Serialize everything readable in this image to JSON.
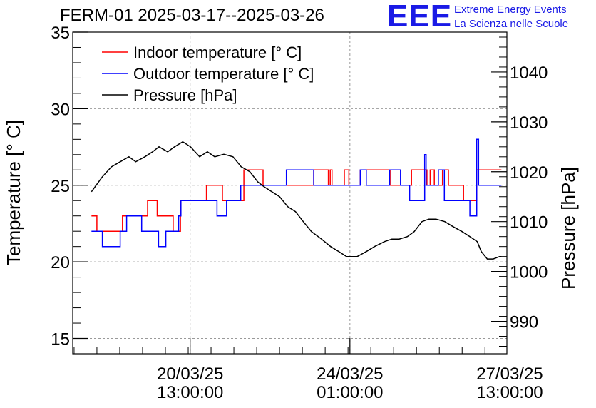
{
  "header": {
    "title": "FERM-01 2025-03-17--2025-03-26",
    "logo_mark": "EEE",
    "logo_line1": "Extreme Energy Events",
    "logo_line2": "La Scienza nelle Scuole"
  },
  "colors": {
    "indoor": "#ff0000",
    "outdoor": "#0000ff",
    "pressure": "#000000",
    "logo": "#1a1ae6"
  },
  "chart_data": {
    "type": "line",
    "title": "FERM-01 2025-03-17--2025-03-26",
    "xlabel": "",
    "ylabel": "Temperature [° C]",
    "y2label": "Pressure [hPa]",
    "ylim": [
      14,
      35
    ],
    "y2lim": [
      983.5,
      1048
    ],
    "yticks": [
      15,
      20,
      25,
      30,
      35
    ],
    "y2ticks": [
      990,
      1000,
      1010,
      1020,
      1030,
      1040
    ],
    "x_unit": "days since 2025-03-17 00:00",
    "xlim": [
      0.97,
      10.48
    ],
    "xticks": [
      {
        "x": 3.5417,
        "label_date": "20/03/25",
        "label_time": "13:00:00"
      },
      {
        "x": 7.0417,
        "label_date": "24/03/25",
        "label_time": "01:00:00"
      },
      {
        "x": 10.5417,
        "label_date": "27/03/25",
        "label_time": "13:00:00"
      }
    ],
    "grid": true,
    "legend_position": "top-left",
    "series": [
      {
        "name": "Indoor temperature [° C]",
        "axis": "left",
        "step": true,
        "points": [
          [
            1.38,
            23
          ],
          [
            1.5,
            22
          ],
          [
            2.06,
            23
          ],
          [
            2.61,
            24
          ],
          [
            2.82,
            23
          ],
          [
            3.17,
            22
          ],
          [
            3.33,
            24
          ],
          [
            3.9,
            25
          ],
          [
            4.25,
            24
          ],
          [
            4.72,
            26
          ],
          [
            5.14,
            25
          ],
          [
            6.25,
            26
          ],
          [
            6.57,
            25
          ],
          [
            6.61,
            26
          ],
          [
            6.65,
            25
          ],
          [
            6.92,
            26
          ],
          [
            7.02,
            25
          ],
          [
            7.27,
            26
          ],
          [
            7.92,
            25
          ],
          [
            8.39,
            26
          ],
          [
            8.73,
            25
          ],
          [
            8.8,
            26
          ],
          [
            8.89,
            25
          ],
          [
            9.07,
            26
          ],
          [
            9.2,
            25
          ],
          [
            9.53,
            24
          ],
          [
            9.82,
            26
          ],
          [
            10.36,
            26
          ]
        ]
      },
      {
        "name": "Outdoor temperature [° C]",
        "axis": "left",
        "step": true,
        "points": [
          [
            1.38,
            22
          ],
          [
            1.62,
            21
          ],
          [
            2.01,
            22
          ],
          [
            2.15,
            23
          ],
          [
            2.48,
            22
          ],
          [
            2.85,
            21
          ],
          [
            3.01,
            22
          ],
          [
            3.29,
            23
          ],
          [
            3.34,
            24
          ],
          [
            4.13,
            23
          ],
          [
            4.34,
            24
          ],
          [
            4.65,
            25
          ],
          [
            5.65,
            26
          ],
          [
            6.25,
            25
          ],
          [
            7.27,
            26
          ],
          [
            7.4,
            25
          ],
          [
            7.91,
            26
          ],
          [
            8.15,
            25
          ],
          [
            8.35,
            24
          ],
          [
            8.68,
            27
          ],
          [
            8.71,
            25
          ],
          [
            8.98,
            26
          ],
          [
            9.11,
            24
          ],
          [
            9.67,
            23
          ],
          [
            9.82,
            28
          ],
          [
            9.86,
            25
          ],
          [
            10.36,
            25
          ]
        ]
      },
      {
        "name": "Pressure [hPa]",
        "axis": "right",
        "step": false,
        "points": [
          [
            1.38,
            1016.0
          ],
          [
            1.62,
            1019.0
          ],
          [
            1.82,
            1021.0
          ],
          [
            2.01,
            1022.0
          ],
          [
            2.2,
            1023.0
          ],
          [
            2.35,
            1022.0
          ],
          [
            2.55,
            1023.0
          ],
          [
            2.72,
            1024.0
          ],
          [
            2.86,
            1025.0
          ],
          [
            3.05,
            1024.0
          ],
          [
            3.2,
            1025.0
          ],
          [
            3.38,
            1026.0
          ],
          [
            3.55,
            1025.0
          ],
          [
            3.75,
            1023.0
          ],
          [
            3.92,
            1024.0
          ],
          [
            4.08,
            1023.0
          ],
          [
            4.28,
            1023.5
          ],
          [
            4.48,
            1023.0
          ],
          [
            4.66,
            1021.0
          ],
          [
            4.85,
            1020.0
          ],
          [
            5.02,
            1018.0
          ],
          [
            5.16,
            1017.0
          ],
          [
            5.33,
            1016.0
          ],
          [
            5.5,
            1015.0
          ],
          [
            5.68,
            1013.0
          ],
          [
            5.85,
            1012.0
          ],
          [
            6.02,
            1010.0
          ],
          [
            6.2,
            1008.0
          ],
          [
            6.42,
            1006.5
          ],
          [
            6.62,
            1005.0
          ],
          [
            6.8,
            1004.0
          ],
          [
            6.97,
            1003.0
          ],
          [
            7.2,
            1003.0
          ],
          [
            7.4,
            1004.0
          ],
          [
            7.58,
            1005.0
          ],
          [
            7.8,
            1006.0
          ],
          [
            7.96,
            1006.5
          ],
          [
            8.12,
            1006.5
          ],
          [
            8.3,
            1007.0
          ],
          [
            8.45,
            1008.0
          ],
          [
            8.62,
            1010.0
          ],
          [
            8.77,
            1010.5
          ],
          [
            8.93,
            1010.5
          ],
          [
            9.12,
            1010.0
          ],
          [
            9.3,
            1009.0
          ],
          [
            9.5,
            1008.0
          ],
          [
            9.67,
            1007.0
          ],
          [
            9.83,
            1006.0
          ],
          [
            9.92,
            1004.0
          ],
          [
            10.05,
            1002.5
          ],
          [
            10.18,
            1002.5
          ],
          [
            10.32,
            1003.0
          ],
          [
            10.36,
            1003.0
          ]
        ]
      }
    ]
  }
}
